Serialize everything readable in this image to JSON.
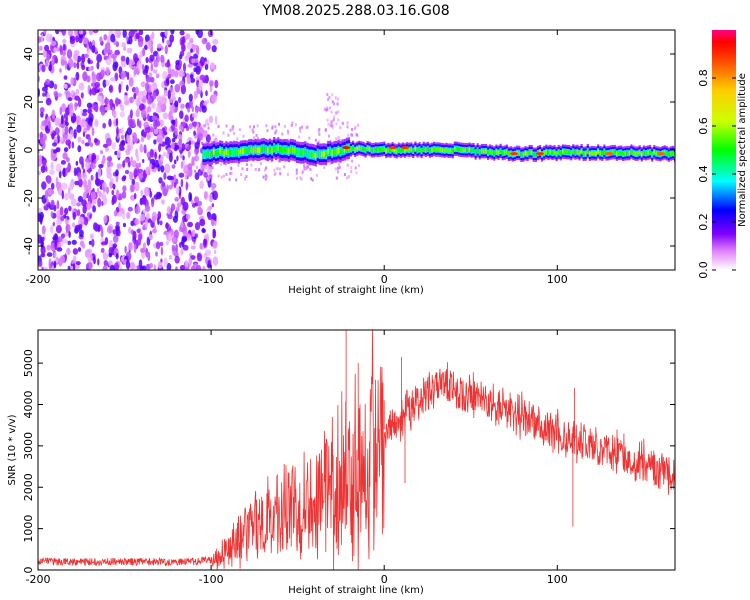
{
  "title": "YM08.2025.288.03.16.G08",
  "chart_data": [
    {
      "type": "heatmap",
      "name": "spectrogram",
      "xlabel": "Height of straight line (km)",
      "ylabel": "Frequency (Hz)",
      "xlim": [
        -200,
        168
      ],
      "ylim": [
        -50,
        50
      ],
      "xticks": [
        -200,
        -100,
        0,
        100
      ],
      "yticks": [
        -40,
        -20,
        0,
        20,
        40
      ],
      "noise_region_x": [
        -200,
        -100
      ],
      "signal_band": [
        {
          "x": -105,
          "f": -1.5
        },
        {
          "x": -60,
          "f": 0.5
        },
        {
          "x": -40,
          "f": -2
        },
        {
          "x": -20,
          "f": 0.5
        },
        {
          "x": 0,
          "f": 0
        },
        {
          "x": 40,
          "f": 0
        },
        {
          "x": 80,
          "f": -1.5
        },
        {
          "x": 110,
          "f": -1
        },
        {
          "x": 168,
          "f": -1.5
        }
      ],
      "peaks_red": [
        {
          "x": -22,
          "f": 1,
          "amp": 0.95
        },
        {
          "x": 5,
          "f": 1,
          "amp": 0.9
        },
        {
          "x": 12,
          "f": 1,
          "amp": 0.9
        },
        {
          "x": 75,
          "f": -1.5,
          "amp": 0.9
        },
        {
          "x": 90,
          "f": -1.5,
          "amp": 0.9
        },
        {
          "x": 130,
          "f": -1.5,
          "amp": 0.85
        },
        {
          "x": 160,
          "f": -1.5,
          "amp": 0.85
        }
      ],
      "colorbar": {
        "label": "Normalized spectral amplitude",
        "range": [
          0,
          1
        ],
        "ticks": [
          "0.0",
          "0.2",
          "0.4",
          "0.6",
          "0.8"
        ]
      }
    },
    {
      "type": "line",
      "name": "snr",
      "xlabel": "Height of straight line (km)",
      "ylabel": "SNR (10 * v/v)",
      "xlim": [
        -200,
        168
      ],
      "ylim": [
        0,
        5800
      ],
      "xticks": [
        -200,
        -100,
        0,
        100
      ],
      "yticks": [
        0,
        1000,
        2000,
        3000,
        4000,
        5000
      ],
      "series_color": "#ee3333",
      "envelope": [
        {
          "x": -200,
          "y": 150
        },
        {
          "x": -110,
          "y": 150
        },
        {
          "x": -100,
          "y": 200
        },
        {
          "x": -90,
          "y": 500
        },
        {
          "x": -80,
          "y": 900
        },
        {
          "x": -60,
          "y": 1400
        },
        {
          "x": -40,
          "y": 1800
        },
        {
          "x": -20,
          "y": 2400
        },
        {
          "x": 0,
          "y": 3400
        },
        {
          "x": 20,
          "y": 4100
        },
        {
          "x": 35,
          "y": 4450
        },
        {
          "x": 50,
          "y": 4200
        },
        {
          "x": 80,
          "y": 3700
        },
        {
          "x": 100,
          "y": 3300
        },
        {
          "x": 130,
          "y": 2900
        },
        {
          "x": 168,
          "y": 2300
        }
      ],
      "spikes": [
        {
          "x": -22,
          "y": 5800
        },
        {
          "x": -15,
          "y": 5000
        },
        {
          "x": 10,
          "y": 5150
        },
        {
          "x": 12,
          "y": 2100
        },
        {
          "x": 0,
          "y": 4100
        },
        {
          "x": 110,
          "y": 4400
        },
        {
          "x": 109,
          "y": 1050
        }
      ]
    }
  ]
}
